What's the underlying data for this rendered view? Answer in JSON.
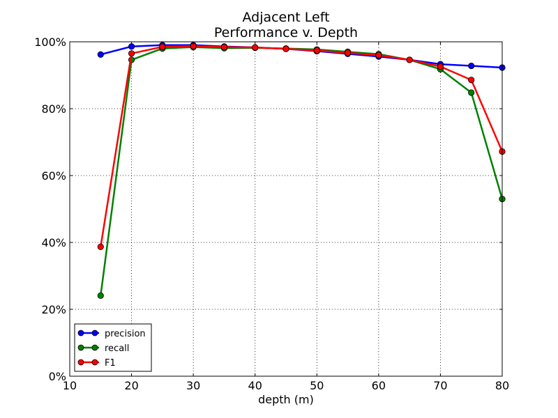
{
  "chart_data": {
    "type": "line",
    "title": "Adjacent Left",
    "subtitle": "Performance v. Depth",
    "xlabel": "depth (m)",
    "ylabel": "",
    "xlim": [
      10,
      80
    ],
    "ylim": [
      0,
      1
    ],
    "x_ticks": [
      10,
      20,
      30,
      40,
      50,
      60,
      70,
      80
    ],
    "x_tick_labels": [
      "10",
      "20",
      "30",
      "40",
      "50",
      "60",
      "70",
      "80"
    ],
    "y_ticks": [
      0,
      0.2,
      0.4,
      0.6,
      0.8,
      1.0
    ],
    "y_tick_labels": [
      "0%",
      "20%",
      "40%",
      "60%",
      "80%",
      "100%"
    ],
    "grid": true,
    "legend_position": "lower-left",
    "series": [
      {
        "name": "precision",
        "color": "#0000ff",
        "x": [
          15,
          20,
          25,
          30,
          35,
          40,
          45,
          50,
          55,
          60,
          65,
          70,
          75,
          80
        ],
        "values": [
          0.962,
          0.986,
          0.99,
          0.99,
          0.986,
          0.983,
          0.979,
          0.972,
          0.964,
          0.956,
          0.946,
          0.933,
          0.928,
          0.923
        ]
      },
      {
        "name": "recall",
        "color": "#008000",
        "x": [
          15,
          20,
          25,
          30,
          35,
          40,
          45,
          50,
          55,
          60,
          65,
          70,
          75,
          80
        ],
        "values": [
          0.241,
          0.946,
          0.98,
          0.984,
          0.981,
          0.982,
          0.98,
          0.977,
          0.97,
          0.963,
          0.946,
          0.918,
          0.848,
          0.53
        ]
      },
      {
        "name": "F1",
        "color": "#ff0000",
        "x": [
          15,
          20,
          25,
          30,
          35,
          40,
          45,
          50,
          55,
          60,
          65,
          70,
          75,
          80
        ],
        "values": [
          0.387,
          0.965,
          0.985,
          0.987,
          0.984,
          0.983,
          0.979,
          0.974,
          0.967,
          0.96,
          0.946,
          0.926,
          0.886,
          0.672
        ]
      }
    ]
  }
}
